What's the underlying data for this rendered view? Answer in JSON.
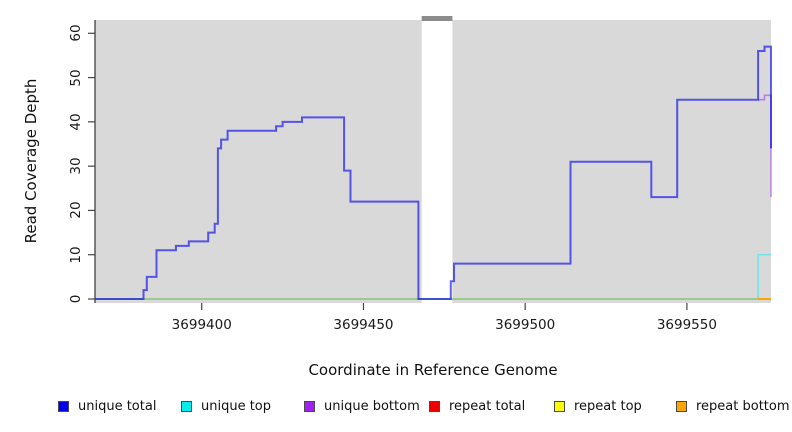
{
  "chart_data": {
    "type": "line",
    "subtype": "step",
    "xlabel": "Coordinate in Reference Genome",
    "ylabel": "Read Coverage Depth",
    "xlim": [
      3699367,
      3699576
    ],
    "ylim": [
      0,
      63
    ],
    "yticks": [
      0,
      10,
      20,
      30,
      40,
      50,
      60
    ],
    "xticks": [
      3699400,
      3699450,
      3699500,
      3699550
    ],
    "xtick_labels": [
      "3699400",
      "3699450",
      "3699500",
      "3699550"
    ],
    "grid": false,
    "plot_background": "#d9d9d9",
    "masked_region": {
      "x0": 3699468,
      "x1": 3699477.5,
      "fill": "#ffffff",
      "cap_fill": "#8c8c8c"
    },
    "series": [
      {
        "name": "repeat total",
        "color": "#EE0000",
        "opacity": 0.5,
        "width": 1.6,
        "points": [
          [
            3699367,
            0
          ],
          [
            3699576,
            0
          ]
        ]
      },
      {
        "name": "repeat top",
        "color": "#FFFF00",
        "opacity": 0.5,
        "width": 1.6,
        "points": [
          [
            3699367,
            0
          ],
          [
            3699576,
            0
          ]
        ]
      },
      {
        "name": "unique top",
        "color": "#00EEEE",
        "opacity": 0.45,
        "width": 1.6,
        "points": [
          [
            3699367,
            0
          ],
          [
            3699572,
            10
          ],
          [
            3699576,
            10
          ]
        ]
      },
      {
        "name": "repeat bottom",
        "color": "#FFA500",
        "opacity": 1.0,
        "width": 2,
        "points": [
          [
            3699572,
            0
          ],
          [
            3699576,
            0
          ]
        ]
      },
      {
        "name": "unique bottom",
        "color": "#A020F0",
        "opacity": 0.5,
        "width": 1.6,
        "points": [
          [
            3699572,
            45
          ],
          [
            3699574,
            46
          ],
          [
            3699576,
            23
          ]
        ]
      },
      {
        "name": "unique total",
        "color": "#0000EE",
        "opacity": 0.62,
        "width": 2,
        "points": [
          [
            3699367,
            0
          ],
          [
            3699382,
            2
          ],
          [
            3699383,
            5
          ],
          [
            3699386,
            11
          ],
          [
            3699392,
            12
          ],
          [
            3699396,
            13
          ],
          [
            3699402,
            15
          ],
          [
            3699404,
            17
          ],
          [
            3699405,
            34
          ],
          [
            3699406,
            36
          ],
          [
            3699408,
            38
          ],
          [
            3699423,
            39
          ],
          [
            3699425,
            40
          ],
          [
            3699431,
            41
          ],
          [
            3699444,
            29
          ],
          [
            3699446,
            22
          ],
          [
            3699467,
            0
          ],
          [
            3699477,
            4
          ],
          [
            3699478,
            8
          ],
          [
            3699514,
            31
          ],
          [
            3699539,
            23
          ],
          [
            3699547,
            45
          ],
          [
            3699572,
            56
          ],
          [
            3699574,
            57
          ],
          [
            3699576,
            34
          ]
        ]
      }
    ],
    "legend_position": "bottom",
    "legend": [
      {
        "label": "unique total",
        "color": "#0000EE"
      },
      {
        "label": "unique top",
        "color": "#00EEEE"
      },
      {
        "label": "unique bottom",
        "color": "#A020F0"
      },
      {
        "label": "repeat total",
        "color": "#EE0000"
      },
      {
        "label": "repeat top",
        "color": "#FFFF00"
      },
      {
        "label": "repeat bottom",
        "color": "#FFA500"
      }
    ]
  },
  "axes": {
    "x_title": "Coordinate in Reference Genome",
    "y_title": "Read Coverage Depth"
  }
}
